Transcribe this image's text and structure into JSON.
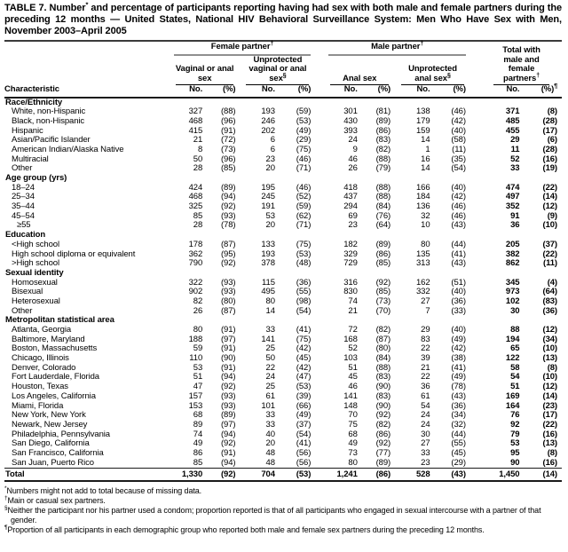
{
  "title": {
    "prefix": "TABLE 7. Number",
    "marker": "*",
    "rest": " and percentage of participants reporting having had sex with both male and female partners during the preceding 12 months — United States, National HIV Behavioral Surveillance System: Men Who Have Sex with Men, November 2003–April 2005"
  },
  "header": {
    "characteristic": "Characteristic",
    "groups": [
      {
        "label": "Female partner",
        "marker": "†"
      },
      {
        "label": "Male partner",
        "marker": "†"
      }
    ],
    "subcols": [
      {
        "label": "Vaginal or anal sex",
        "marker": ""
      },
      {
        "label": "Unprotected vaginal or anal sex",
        "marker": "§"
      },
      {
        "label": "Anal sex",
        "marker": ""
      },
      {
        "label": "Unprotected anal sex",
        "marker": "§"
      }
    ],
    "total_col": {
      "label": "Total with male and female partners",
      "marker": "†"
    },
    "no_label": "No.",
    "pct_label": "(%)",
    "pct_total_marker": "¶"
  },
  "table": {
    "sections": [
      {
        "header": "Race/Ethnicity",
        "rows": [
          {
            "label": "White, non-Hispanic",
            "values": [
              "327",
              "(88)",
              "193",
              "(59)",
              "301",
              "(81)",
              "138",
              "(46)",
              "371",
              "(8)"
            ]
          },
          {
            "label": "Black, non-Hispanic",
            "values": [
              "468",
              "(96)",
              "246",
              "(53)",
              "430",
              "(89)",
              "179",
              "(42)",
              "485",
              "(28)"
            ]
          },
          {
            "label": "Hispanic",
            "values": [
              "415",
              "(91)",
              "202",
              "(49)",
              "393",
              "(86)",
              "159",
              "(40)",
              "455",
              "(17)"
            ]
          },
          {
            "label": "Asian/Pacific Islander",
            "values": [
              "21",
              "(72)",
              "6",
              "(29)",
              "24",
              "(83)",
              "14",
              "(58)",
              "29",
              "(6)"
            ]
          },
          {
            "label": "American Indian/Alaska Native",
            "values": [
              "8",
              "(73)",
              "6",
              "(75)",
              "9",
              "(82)",
              "1",
              "(11)",
              "11",
              "(28)"
            ]
          },
          {
            "label": "Multiracial",
            "values": [
              "50",
              "(96)",
              "23",
              "(46)",
              "46",
              "(88)",
              "16",
              "(35)",
              "52",
              "(16)"
            ]
          },
          {
            "label": "Other",
            "values": [
              "28",
              "(85)",
              "20",
              "(71)",
              "26",
              "(79)",
              "14",
              "(54)",
              "33",
              "(19)"
            ]
          }
        ]
      },
      {
        "header": "Age group (yrs)",
        "rows": [
          {
            "label": "18–24",
            "values": [
              "424",
              "(89)",
              "195",
              "(46)",
              "418",
              "(88)",
              "166",
              "(40)",
              "474",
              "(22)"
            ]
          },
          {
            "label": "25–34",
            "values": [
              "468",
              "(94)",
              "245",
              "(52)",
              "437",
              "(88)",
              "184",
              "(42)",
              "497",
              "(14)"
            ]
          },
          {
            "label": "35–44",
            "values": [
              "325",
              "(92)",
              "191",
              "(59)",
              "294",
              "(84)",
              "136",
              "(46)",
              "352",
              "(12)"
            ]
          },
          {
            "label": "45–54",
            "values": [
              "85",
              "(93)",
              "53",
              "(62)",
              "69",
              "(76)",
              "32",
              "(46)",
              "91",
              "(9)"
            ]
          },
          {
            "label": "≥55",
            "indent": 2,
            "values": [
              "28",
              "(78)",
              "20",
              "(71)",
              "23",
              "(64)",
              "10",
              "(43)",
              "36",
              "(10)"
            ]
          }
        ]
      },
      {
        "header": "Education",
        "rows": [
          {
            "label": "<High school",
            "values": [
              "178",
              "(87)",
              "133",
              "(75)",
              "182",
              "(89)",
              "80",
              "(44)",
              "205",
              "(37)"
            ]
          },
          {
            "label": "High school diploma or equivalent",
            "values": [
              "362",
              "(95)",
              "193",
              "(53)",
              "329",
              "(86)",
              "135",
              "(41)",
              "382",
              "(22)"
            ]
          },
          {
            "label": ">High school",
            "values": [
              "790",
              "(92)",
              "378",
              "(48)",
              "729",
              "(85)",
              "313",
              "(43)",
              "862",
              "(11)"
            ]
          }
        ]
      },
      {
        "header": "Sexual identity",
        "rows": [
          {
            "label": "Homosexual",
            "values": [
              "322",
              "(93)",
              "115",
              "(36)",
              "316",
              "(92)",
              "162",
              "(51)",
              "345",
              "(4)"
            ]
          },
          {
            "label": "Bisexual",
            "values": [
              "902",
              "(93)",
              "495",
              "(55)",
              "830",
              "(85)",
              "332",
              "(40)",
              "973",
              "(64)"
            ]
          },
          {
            "label": "Heterosexual",
            "values": [
              "82",
              "(80)",
              "80",
              "(98)",
              "74",
              "(73)",
              "27",
              "(36)",
              "102",
              "(83)"
            ]
          },
          {
            "label": "Other",
            "values": [
              "26",
              "(87)",
              "14",
              "(54)",
              "21",
              "(70)",
              "7",
              "(33)",
              "30",
              "(36)"
            ]
          }
        ]
      },
      {
        "header": "Metropolitan statistical area",
        "rows": [
          {
            "label": "Atlanta, Georgia",
            "values": [
              "80",
              "(91)",
              "33",
              "(41)",
              "72",
              "(82)",
              "29",
              "(40)",
              "88",
              "(12)"
            ]
          },
          {
            "label": "Baltimore, Maryland",
            "values": [
              "188",
              "(97)",
              "141",
              "(75)",
              "168",
              "(87)",
              "83",
              "(49)",
              "194",
              "(34)"
            ]
          },
          {
            "label": "Boston, Massachusetts",
            "values": [
              "59",
              "(91)",
              "25",
              "(42)",
              "52",
              "(80)",
              "22",
              "(42)",
              "65",
              "(10)"
            ]
          },
          {
            "label": "Chicago, Illinois",
            "values": [
              "110",
              "(90)",
              "50",
              "(45)",
              "103",
              "(84)",
              "39",
              "(38)",
              "122",
              "(13)"
            ]
          },
          {
            "label": "Denver, Colorado",
            "values": [
              "53",
              "(91)",
              "22",
              "(42)",
              "51",
              "(88)",
              "21",
              "(41)",
              "58",
              "(8)"
            ]
          },
          {
            "label": "Fort Lauderdale, Florida",
            "values": [
              "51",
              "(94)",
              "24",
              "(47)",
              "45",
              "(83)",
              "22",
              "(49)",
              "54",
              "(10)"
            ]
          },
          {
            "label": "Houston, Texas",
            "values": [
              "47",
              "(92)",
              "25",
              "(53)",
              "46",
              "(90)",
              "36",
              "(78)",
              "51",
              "(12)"
            ]
          },
          {
            "label": "Los Angeles, California",
            "values": [
              "157",
              "(93)",
              "61",
              "(39)",
              "141",
              "(83)",
              "61",
              "(43)",
              "169",
              "(14)"
            ]
          },
          {
            "label": "Miami, Florida",
            "values": [
              "153",
              "(93)",
              "101",
              "(66)",
              "148",
              "(90)",
              "54",
              "(36)",
              "164",
              "(23)"
            ]
          },
          {
            "label": "New York, New York",
            "values": [
              "68",
              "(89)",
              "33",
              "(49)",
              "70",
              "(92)",
              "24",
              "(34)",
              "76",
              "(17)"
            ]
          },
          {
            "label": "Newark, New Jersey",
            "values": [
              "89",
              "(97)",
              "33",
              "(37)",
              "75",
              "(82)",
              "24",
              "(32)",
              "92",
              "(22)"
            ]
          },
          {
            "label": "Philadelphia, Pennsylvania",
            "values": [
              "74",
              "(94)",
              "40",
              "(54)",
              "68",
              "(86)",
              "30",
              "(44)",
              "79",
              "(16)"
            ]
          },
          {
            "label": "San Diego, California",
            "values": [
              "49",
              "(92)",
              "20",
              "(41)",
              "49",
              "(92)",
              "27",
              "(55)",
              "53",
              "(13)"
            ]
          },
          {
            "label": "San Francisco, California",
            "values": [
              "86",
              "(91)",
              "48",
              "(56)",
              "73",
              "(77)",
              "33",
              "(45)",
              "95",
              "(8)"
            ]
          },
          {
            "label": "San Juan, Puerto Rico",
            "values": [
              "85",
              "(94)",
              "48",
              "(56)",
              "80",
              "(89)",
              "23",
              "(29)",
              "90",
              "(16)"
            ]
          }
        ]
      }
    ],
    "total_row": {
      "label": "Total",
      "values": [
        "1,330",
        "(92)",
        "704",
        "(53)",
        "1,241",
        "(86)",
        "528",
        "(43)",
        "1,450",
        "(14)"
      ]
    }
  },
  "footnotes": [
    {
      "marker": "*",
      "text": "Numbers might not add to total because of missing data."
    },
    {
      "marker": "†",
      "text": "Main or casual sex partners."
    },
    {
      "marker": "§",
      "text": "Neither the participant nor his partner used a condom; proportion reported is that of all participants who engaged in sexual intercourse with a partner of that gender."
    },
    {
      "marker": "¶",
      "text": "Proportion of all participants in each demographic group who reported both male and female sex partners during the preceding 12 months."
    }
  ]
}
